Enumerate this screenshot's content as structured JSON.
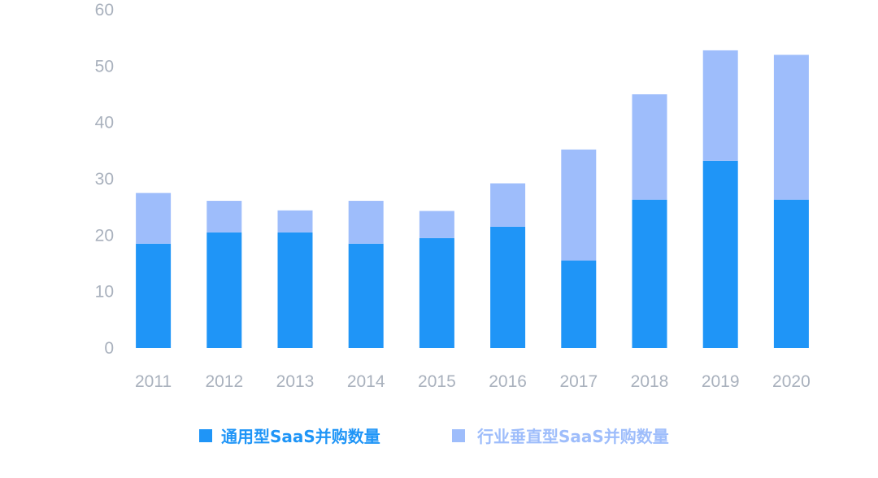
{
  "colors": {
    "general": "#1f95f7",
    "vertical": "#9ebdfb",
    "tick_text": "#a9b1bd"
  },
  "chart_data": {
    "type": "bar",
    "stacked": true,
    "categories": [
      "2011",
      "2012",
      "2013",
      "2014",
      "2015",
      "2016",
      "2017",
      "2018",
      "2019",
      "2020"
    ],
    "series": [
      {
        "name": "通用型SaaS并购数量",
        "color": "#1f95f7",
        "values": [
          18.5,
          20.5,
          20.5,
          18.5,
          19.5,
          21.5,
          15.5,
          26.3,
          33.2,
          26.3
        ]
      },
      {
        "name": "行业垂直型SaaS并购数量",
        "color": "#9ebdfb",
        "values": [
          9.0,
          5.6,
          3.9,
          7.6,
          4.8,
          7.7,
          19.7,
          18.7,
          19.6,
          25.7
        ]
      }
    ],
    "ylim": [
      0,
      60
    ],
    "yticks": [
      "0",
      "10",
      "20",
      "30",
      "40",
      "50",
      "60"
    ],
    "grid": false,
    "legend_position": "bottom"
  }
}
